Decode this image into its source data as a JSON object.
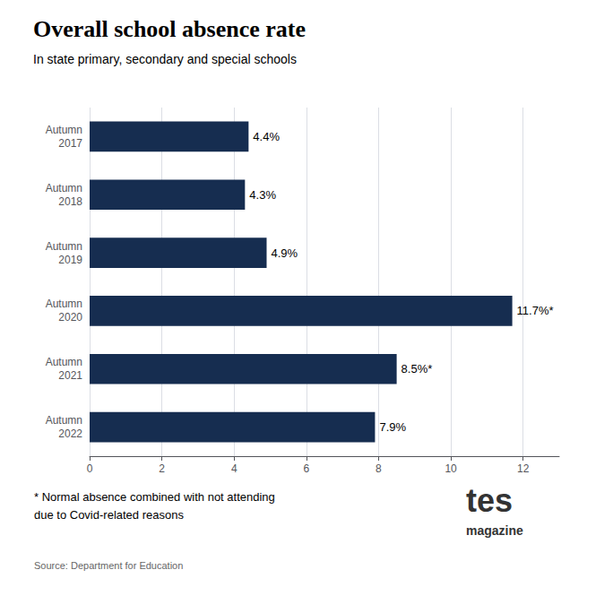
{
  "chart_data": {
    "type": "bar",
    "orientation": "horizontal",
    "title": "Overall school absence rate",
    "subtitle": "In state primary, secondary and special schools",
    "categories": [
      "Autumn\n2017",
      "Autumn\n2018",
      "Autumn\n2019",
      "Autumn\n2020",
      "Autumn\n2021",
      "Autumn\n2022"
    ],
    "values": [
      4.4,
      4.3,
      4.9,
      11.7,
      8.5,
      7.9
    ],
    "value_labels": [
      "4.4%",
      "4.3%",
      "4.9%",
      "11.7%*",
      "8.5%*",
      "7.9%"
    ],
    "data_labels": true,
    "color": "#162d50",
    "xlim": [
      0,
      13
    ],
    "xticks": [
      0,
      2,
      4,
      6,
      8,
      10,
      12
    ],
    "grid": true,
    "annotations": [
      "* Normal absence combined with not attending",
      "due to Covid-related reasons",
      "Source: Department for Education",
      "tes",
      "magazine"
    ]
  }
}
